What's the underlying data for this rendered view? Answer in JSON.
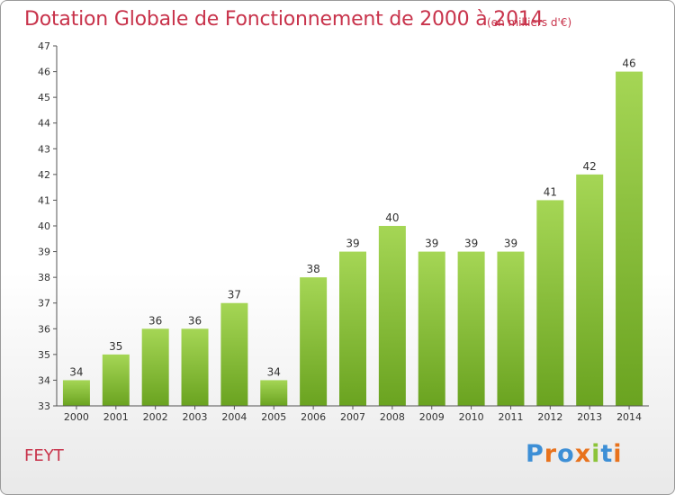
{
  "chart_data": {
    "type": "bar",
    "title": "Dotation Globale de Fonctionnement de 2000 à 2014",
    "subtitle": "(en milliers d'€)",
    "categories": [
      "2000",
      "2001",
      "2002",
      "2003",
      "2004",
      "2005",
      "2006",
      "2007",
      "2008",
      "2009",
      "2010",
      "2011",
      "2012",
      "2013",
      "2014"
    ],
    "values": [
      34,
      35,
      36,
      36,
      37,
      34,
      38,
      39,
      40,
      39,
      39,
      39,
      41,
      42,
      46
    ],
    "ylim": [
      33,
      47
    ],
    "yticks": [
      33,
      34,
      35,
      36,
      37,
      38,
      39,
      40,
      41,
      42,
      43,
      44,
      45,
      46,
      47
    ],
    "xlabel": "",
    "ylabel": "",
    "grid": false
  },
  "commune_name": "FEYT",
  "logo": {
    "text": "Proxiti",
    "letter_colors": [
      "#3d8fd6",
      "#e8721c",
      "#3d8fd6",
      "#e8721c",
      "#8cc43a",
      "#3d8fd6",
      "#e8721c"
    ]
  },
  "colors": {
    "title": "#c8334b",
    "bar_light": "#9fd04d",
    "bar_dark": "#6aa320",
    "axis": "#555555"
  }
}
